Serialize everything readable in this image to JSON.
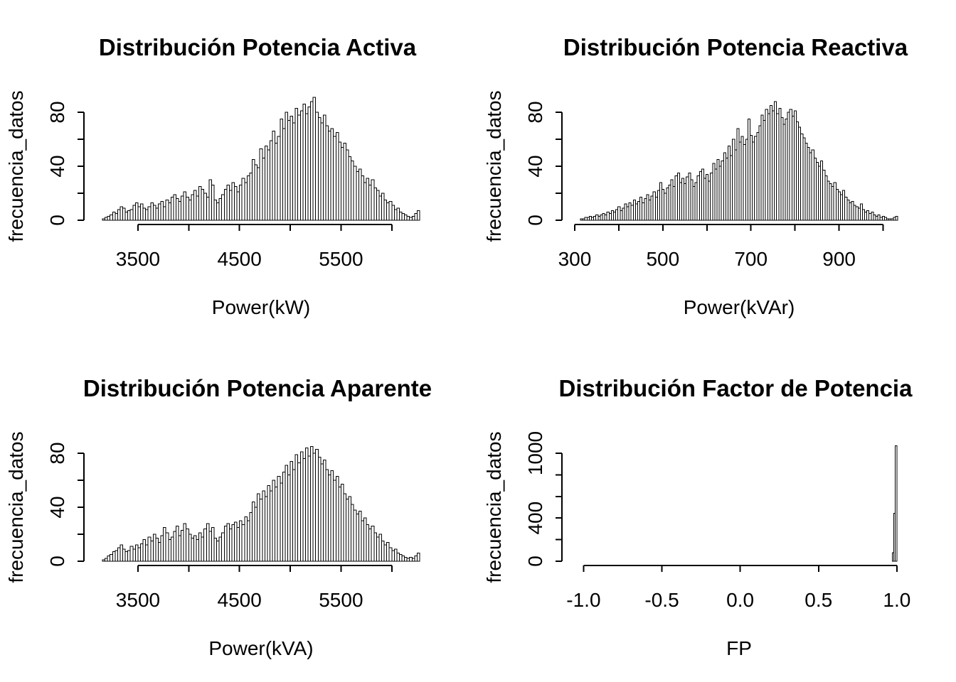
{
  "figure": {
    "background": "#ffffff",
    "ink_color": "#000000",
    "bar_fill": "#ffffff",
    "bar_stroke": "#000000",
    "grid": "off",
    "legend": "none"
  },
  "chart_data": [
    {
      "id": "activa",
      "type": "bar",
      "subtype": "histogram",
      "title": "Distribución Potencia Activa",
      "xlabel": "Power(kW)",
      "ylabel": "frecuencia_datos",
      "grid_pos": {
        "row": 0,
        "col": 0
      },
      "bin_start": 3150,
      "bin_width": 25,
      "counts": [
        1,
        2,
        3,
        4,
        6,
        5,
        8,
        10,
        9,
        6,
        7,
        8,
        11,
        13,
        10,
        12,
        9,
        8,
        10,
        13,
        11,
        9,
        12,
        14,
        10,
        15,
        13,
        17,
        19,
        16,
        14,
        18,
        21,
        17,
        15,
        19,
        22,
        18,
        25,
        23,
        20,
        17,
        30,
        26,
        15,
        13,
        16,
        19,
        23,
        26,
        22,
        28,
        25,
        21,
        26,
        31,
        28,
        33,
        35,
        45,
        41,
        39,
        53,
        46,
        55,
        52,
        59,
        66,
        57,
        62,
        75,
        68,
        80,
        74,
        77,
        72,
        83,
        78,
        81,
        86,
        79,
        84,
        88,
        91,
        80,
        76,
        72,
        78,
        70,
        66,
        68,
        62,
        65,
        58,
        54,
        57,
        52,
        47,
        44,
        40,
        36,
        38,
        33,
        28,
        31,
        26,
        30,
        24,
        22,
        18,
        20,
        15,
        13,
        14,
        11,
        8,
        9,
        6,
        5,
        4,
        3,
        2,
        3,
        5,
        7
      ],
      "xlim": [
        3150,
        6275
      ],
      "ylim": [
        0,
        80
      ],
      "xticks": [
        3500,
        4000,
        4500,
        5000,
        5500,
        6000
      ],
      "xtick_labels": [
        "3500",
        "",
        "4500",
        "",
        "5500",
        ""
      ],
      "yticks": [
        0,
        20,
        40,
        60,
        80
      ],
      "ytick_labels": [
        "0",
        "",
        "40",
        "",
        "80"
      ]
    },
    {
      "id": "reactiva",
      "type": "bar",
      "subtype": "histogram",
      "title": "Distribución Potencia Reactiva",
      "xlabel": "Power(kVAr)",
      "ylabel": "frecuencia_datos",
      "grid_pos": {
        "row": 0,
        "col": 1
      },
      "bin_start": 313,
      "bin_width": 5,
      "counts": [
        1,
        1,
        2,
        2,
        3,
        2,
        3,
        4,
        3,
        4,
        5,
        4,
        6,
        5,
        7,
        6,
        8,
        10,
        7,
        9,
        12,
        10,
        13,
        11,
        15,
        12,
        14,
        17,
        13,
        16,
        19,
        15,
        18,
        21,
        17,
        22,
        28,
        23,
        20,
        24,
        26,
        30,
        25,
        33,
        35,
        28,
        31,
        27,
        32,
        35,
        30,
        25,
        28,
        33,
        36,
        38,
        31,
        34,
        29,
        35,
        42,
        38,
        45,
        40,
        44,
        50,
        46,
        55,
        48,
        60,
        52,
        68,
        58,
        62,
        56,
        60,
        75,
        63,
        58,
        62,
        65,
        70,
        78,
        74,
        82,
        79,
        85,
        81,
        88,
        79,
        83,
        76,
        71,
        75,
        80,
        82,
        77,
        81,
        73,
        69,
        64,
        61,
        57,
        54,
        50,
        52,
        46,
        43,
        40,
        44,
        37,
        33,
        29,
        27,
        25,
        28,
        23,
        21,
        19,
        22,
        17,
        15,
        13,
        14,
        11,
        10,
        9,
        12,
        8,
        6,
        7,
        5,
        6,
        4,
        3,
        4,
        2,
        3,
        2,
        1,
        1,
        1,
        2,
        3
      ],
      "xlim": [
        313,
        1033
      ],
      "ylim": [
        0,
        80
      ],
      "xticks": [
        300,
        400,
        500,
        600,
        700,
        800,
        900,
        1000
      ],
      "xtick_labels": [
        "300",
        "",
        "500",
        "",
        "700",
        "",
        "900",
        ""
      ],
      "yticks": [
        0,
        20,
        40,
        60,
        80
      ],
      "ytick_labels": [
        "0",
        "",
        "40",
        "",
        "80"
      ]
    },
    {
      "id": "aparente",
      "type": "bar",
      "subtype": "histogram",
      "title": "Distribución Potencia Aparente",
      "xlabel": "Power(kVA)",
      "ylabel": "frecuencia_datos",
      "grid_pos": {
        "row": 1,
        "col": 0
      },
      "bin_start": 3150,
      "bin_width": 25,
      "counts": [
        1,
        2,
        4,
        5,
        7,
        8,
        10,
        12,
        9,
        7,
        8,
        11,
        9,
        12,
        10,
        13,
        16,
        12,
        18,
        15,
        20,
        17,
        14,
        19,
        25,
        21,
        16,
        18,
        22,
        26,
        19,
        23,
        28,
        24,
        20,
        17,
        19,
        16,
        21,
        18,
        24,
        28,
        22,
        25,
        17,
        15,
        18,
        21,
        26,
        28,
        24,
        27,
        29,
        25,
        30,
        27,
        33,
        30,
        36,
        44,
        40,
        50,
        46,
        52,
        48,
        56,
        52,
        60,
        55,
        63,
        58,
        66,
        71,
        64,
        74,
        68,
        79,
        73,
        81,
        76,
        84,
        78,
        85,
        80,
        83,
        77,
        72,
        75,
        68,
        64,
        67,
        60,
        63,
        55,
        57,
        50,
        46,
        48,
        42,
        38,
        35,
        37,
        30,
        32,
        27,
        24,
        26,
        21,
        18,
        20,
        15,
        12,
        14,
        10,
        8,
        9,
        6,
        5,
        4,
        3,
        2,
        3,
        2,
        4,
        6
      ],
      "xlim": [
        3150,
        6275
      ],
      "ylim": [
        0,
        80
      ],
      "xticks": [
        3500,
        4000,
        4500,
        5000,
        5500,
        6000
      ],
      "xtick_labels": [
        "3500",
        "",
        "4500",
        "",
        "5500",
        ""
      ],
      "yticks": [
        0,
        20,
        40,
        60,
        80
      ],
      "ytick_labels": [
        "0",
        "",
        "40",
        "",
        "80"
      ]
    },
    {
      "id": "fp",
      "type": "bar",
      "subtype": "histogram",
      "title": "Distribución Factor de Potencia",
      "xlabel": "FP",
      "ylabel": "frecuencia_datos",
      "grid_pos": {
        "row": 1,
        "col": 1
      },
      "bin_start": 0.97,
      "bin_width": 0.01,
      "counts": [
        80,
        445,
        1070
      ],
      "xlim": [
        -1.02,
        1.005
      ],
      "ylim": [
        0,
        1000
      ],
      "xticks": [
        -1.0,
        -0.5,
        0.0,
        0.5,
        1.0
      ],
      "xtick_labels": [
        "-1.0",
        "-0.5",
        "0.0",
        "0.5",
        "1.0"
      ],
      "yticks": [
        0,
        200,
        400,
        600,
        800,
        1000
      ],
      "ytick_labels": [
        "0",
        "",
        "400",
        "",
        "",
        "1000"
      ]
    }
  ]
}
